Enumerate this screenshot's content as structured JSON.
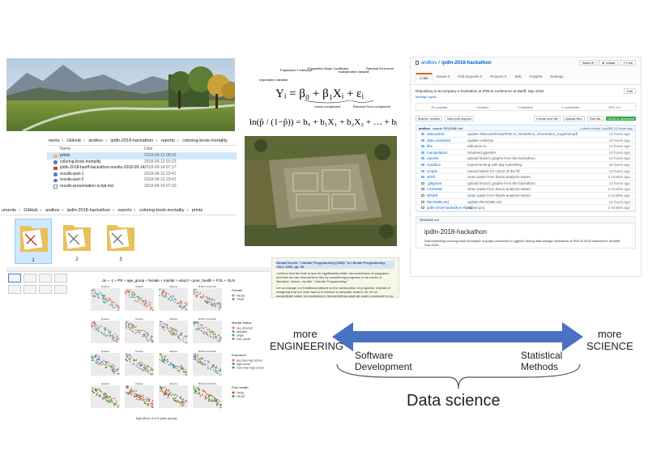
{
  "explorer_top": {
    "breadcrumb": [
      "nents",
      "GitHub",
      "andkov",
      "ipdln-2018-hackathon",
      "reports",
      "coloring-book-mortality"
    ],
    "col_name": "Name",
    "col_date": "Date",
    "rows": [
      {
        "name": "prints",
        "date": "2018-09-13 08:02",
        "type": "folder"
      },
      {
        "name": "coloring-book-mortality",
        "date": "2018-09-12 15:23",
        "type": "r"
      },
      {
        "name": "ipdln-2018-banff-hackathon-results-2018-09-14",
        "date": "2018-09-14 07:17",
        "type": "pdf"
      },
      {
        "name": "results-part-1",
        "date": "2018-09-13 23:41",
        "type": "r"
      },
      {
        "name": "results-part-2",
        "date": "2018-09-13 23:41",
        "type": "r"
      },
      {
        "name": "results-presentation-script.md",
        "date": "2018-09-14 07:30",
        "type": "doc"
      }
    ]
  },
  "explorer_bottom": {
    "breadcrumb": [
      "uments",
      "GitHub",
      "andkov",
      "ipdln-2018-hackathon",
      "reports",
      "coloring-book-mortality",
      "prints"
    ],
    "folders": [
      "1",
      "2",
      "3"
    ]
  },
  "equation": {
    "labels": {
      "dependent": "Dependent Variable",
      "intercept": "Population Y intercept",
      "slope": "Population Slope Coefficient",
      "independent": "Independent Variable",
      "error": "Random Error term",
      "linear": "Linear component",
      "random": "Random Error component"
    }
  },
  "github": {
    "owner": "andkov",
    "repo": "ipdln-2018-hackathon",
    "tabs": [
      "Code",
      "Issues 0",
      "Pull requests 0",
      "Projects 0",
      "Wiki",
      "Insights",
      "Settings"
    ],
    "description": "Repository to accompany a hackathon at IPDLN conference at Banff, Sep 2018",
    "manage_topics": "Manage topics",
    "stats": [
      "78 commits",
      "1 branch",
      "0 releases",
      "1 contributor",
      "GPL-3.0"
    ],
    "btn_branch": "Branch: master",
    "btn_new_pr": "New pull request",
    "btn_create": "Create new file",
    "btn_upload": "Upload files",
    "btn_find": "Find file",
    "btn_clone": "Clone or download",
    "commit_author": "andkov",
    "commit_msg": "cosmic README.md",
    "commit_latest": "Latest commit 1acd0f8 12 hours ago",
    "files": [
      {
        "name": "data-public",
        "msg": "update data-public/raw/IPDLN_hackathon_information_Aug2018.pdf",
        "time": "13 hours ago"
      },
      {
        "name": "data-unshared",
        "msg": "update contents",
        "time": "13 hours ago"
      },
      {
        "name": "libs",
        "msg": "edit print.rm",
        "time": "13 hours ago"
      },
      {
        "name": "manipulation",
        "msg": "renamed ggsetter",
        "time": "10 hours ago"
      },
      {
        "name": "reports",
        "msg": "upload historic graphs from the hackathon",
        "time": "13 hours ago"
      },
      {
        "name": "sandbox",
        "msg": "experimenting with tidy subsetting",
        "time": "15 hours ago"
      },
      {
        "name": "scripts",
        "msg": "natural labels for colors of the fill",
        "time": "13 hours ago"
      },
      {
        "name": "stitch",
        "msg": "clean paste from thavis-analysis-starter",
        "time": "2 months ago"
      },
      {
        "name": ".gitignore",
        "msg": "upload historic graphs from the hackathon",
        "time": "13 hours ago"
      },
      {
        "name": "LICENSE",
        "msg": "clean paste from thavis-analysis-starter",
        "time": "2 months ago"
      },
      {
        "name": "NEWS",
        "msg": "clean paste from thavis-analysis-starter",
        "time": "2 months ago"
      },
      {
        "name": "README.md",
        "msg": "update README.md",
        "time": "12 hours ago"
      },
      {
        "name": "ipdln-2018-hackathon.Rproj",
        "msg": "added proj",
        "time": "2 months ago"
      }
    ],
    "readme_tab": "README.md",
    "readme_title": "ipdln-2018-hackathon",
    "readme_body": "Demonstrating coloring-book technique of graph production in ggplot2 during data linkage hackathon at IPDLN-2018 conference at Banff, Sep 2018."
  },
  "litnote": {
    "quote_head": "Donald Knuth. \"Literate Programming (1984)\" in Literate Programming. CSLI, 1992, pp. 99.",
    "p1": "I believe that the time is ripe for significantly better documentation of programs, and that we can best achieve this by considering programs to be works of literature. Hence, my title: \"Literate Programming.\"",
    "p2": "Let us change our traditional attitude to the construction of programs: Instead of imagining that our main task is to instruct a computer what to do, let us concentrate rather on explaining to human beings what we want a computer to do."
  },
  "facets": {
    "formula": "dv ~ -1 + PR + age_group + female + marital + educ3 + poor_health + FOL + OLN",
    "columns": [
      "Quebec",
      "Ontario",
      "Alberta",
      "British Columbia"
    ],
    "xlabel": "Age (floor of a 5-year group)",
    "legends": [
      {
        "title": "Female",
        "items": [
          {
            "label": "FALSE",
            "color": "#e8735a"
          },
          {
            "label": "TRUE",
            "color": "#3aa6a0"
          }
        ]
      },
      {
        "title": "Marital Status",
        "items": [
          {
            "label": "sep_divorced",
            "color": "#e8735a"
          },
          {
            "label": "widowed",
            "color": "#7aa63a"
          },
          {
            "label": "single",
            "color": "#3aa6a0"
          },
          {
            "label": "mar_cohab",
            "color": "#a56cc1"
          }
        ]
      },
      {
        "title": "Education",
        "items": [
          {
            "label": "less than high school",
            "color": "#e8735a"
          },
          {
            "label": "high school",
            "color": "#3aa63a"
          },
          {
            "label": "more than high school",
            "color": "#4a7ac9"
          }
        ]
      },
      {
        "title": "Poor health",
        "items": [
          {
            "label": "TRUE",
            "color": "#d93a2a"
          },
          {
            "label": "FALSE",
            "color": "#3aa63a"
          }
        ]
      }
    ]
  },
  "diagram": {
    "left_label_1": "more",
    "left_label_2": "ENGINEERING",
    "right_label_1": "more",
    "right_label_2": "SCIENCE",
    "mid_left_1": "Software",
    "mid_left_2": "Development",
    "mid_right_1": "Statistical",
    "mid_right_2": "Methods",
    "bottom": "Data science",
    "arrow_color": "#4a72c4"
  }
}
